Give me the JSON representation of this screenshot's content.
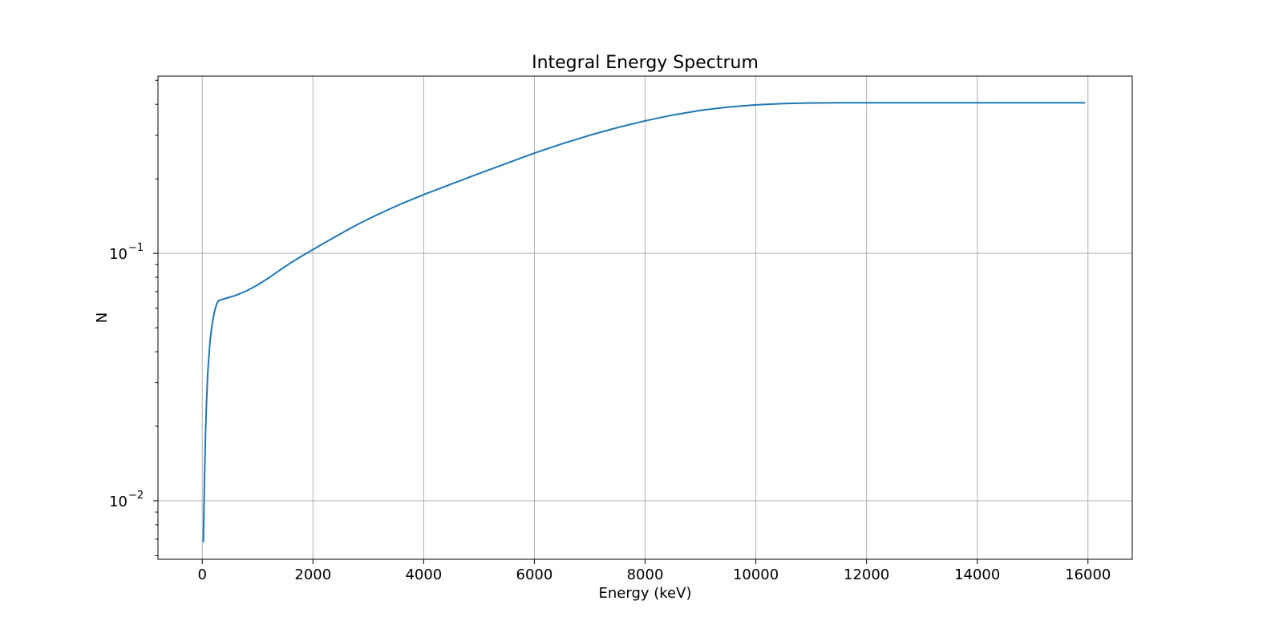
{
  "chart_data": {
    "type": "line",
    "title": "Integral Energy Spectrum",
    "xlabel": "Energy (keV)",
    "ylabel": "N",
    "xscale": "linear",
    "yscale": "log",
    "xlim": [
      -800,
      16800
    ],
    "ylim": [
      0.0058,
      0.52
    ],
    "grid": true,
    "line_color": "#1f77b4",
    "x_ticks": [
      0,
      2000,
      4000,
      6000,
      8000,
      10000,
      12000,
      14000,
      16000
    ],
    "x_tick_labels": [
      "0",
      "2000",
      "4000",
      "6000",
      "8000",
      "10000",
      "12000",
      "14000",
      "16000"
    ],
    "y_major_ticks": [
      0.01,
      0.1
    ],
    "y_major_tick_labels": [
      {
        "base": "10",
        "exp": "−2"
      },
      {
        "base": "10",
        "exp": "−1"
      }
    ],
    "y_minor_ticks": [
      0.006,
      0.007,
      0.008,
      0.009,
      0.02,
      0.03,
      0.04,
      0.05,
      0.06,
      0.07,
      0.08,
      0.09,
      0.2,
      0.3,
      0.4,
      0.5
    ],
    "series": [
      {
        "x": [
          20,
          40,
          60,
          80,
          100,
          140,
          180,
          220,
          260,
          300,
          400,
          600,
          800,
          1000,
          1200,
          1400,
          1600,
          1800,
          2000,
          2200,
          2400,
          2600,
          2800,
          3000,
          3200,
          3400,
          3600,
          3800,
          4000,
          4500,
          5000,
          5500,
          6000,
          6500,
          7000,
          7500,
          8000,
          8500,
          9000,
          9500,
          10000,
          10500,
          11000,
          11500,
          12000,
          13000,
          14000,
          15000,
          15950
        ],
        "y": [
          0.0068,
          0.012,
          0.019,
          0.026,
          0.033,
          0.044,
          0.052,
          0.058,
          0.0625,
          0.0645,
          0.0655,
          0.0675,
          0.0705,
          0.0745,
          0.0795,
          0.0855,
          0.0915,
          0.0975,
          0.1035,
          0.11,
          0.1165,
          0.1235,
          0.1305,
          0.1375,
          0.1445,
          0.1515,
          0.1585,
          0.1655,
          0.1725,
          0.1905,
          0.21,
          0.231,
          0.254,
          0.277,
          0.3,
          0.322,
          0.343,
          0.362,
          0.378,
          0.39,
          0.398,
          0.403,
          0.405,
          0.406,
          0.406,
          0.406,
          0.406,
          0.406,
          0.406
        ]
      }
    ]
  }
}
